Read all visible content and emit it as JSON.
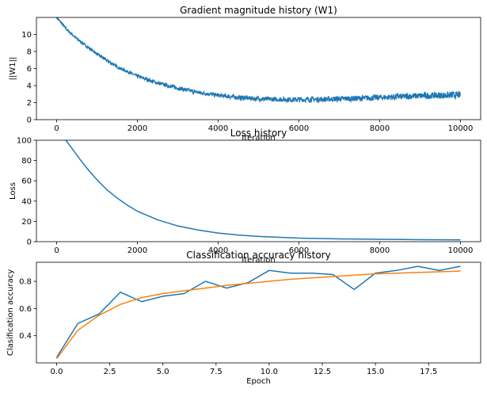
{
  "chart_data": [
    {
      "type": "line",
      "title": "Gradient magnitude history (W1)",
      "xlabel": "Iteration",
      "ylabel": "||W1||",
      "xlim": [
        -500,
        10500
      ],
      "ylim": [
        0,
        12
      ],
      "xticks": [
        0,
        2000,
        4000,
        6000,
        8000,
        10000
      ],
      "yticks": [
        0,
        2,
        4,
        6,
        8,
        10
      ],
      "grid": false,
      "series": [
        {
          "x": [
            0,
            250,
            500,
            1000,
            1500,
            2000,
            2500,
            3000,
            3500,
            4000,
            4500,
            5000,
            5500,
            6000,
            6500,
            7000,
            7500,
            8000,
            8500,
            9000,
            9500,
            10000
          ],
          "values": [
            12.0,
            10.6,
            9.5,
            7.7,
            6.2,
            5.1,
            4.3,
            3.7,
            3.2,
            2.85,
            2.6,
            2.45,
            2.38,
            2.35,
            2.38,
            2.45,
            2.5,
            2.6,
            2.7,
            2.8,
            2.85,
            2.9
          ]
        }
      ]
    },
    {
      "type": "line",
      "title": "Loss history",
      "xlabel": "Iteration",
      "ylabel": "Loss",
      "xlim": [
        -500,
        10500
      ],
      "ylim": [
        0,
        100
      ],
      "xticks": [
        0,
        2000,
        4000,
        6000,
        8000,
        10000
      ],
      "yticks": [
        0,
        20,
        40,
        60,
        80,
        100
      ],
      "grid": false,
      "series": [
        {
          "x": [
            230,
            400,
            600,
            800,
            1000,
            1250,
            1500,
            1750,
            2000,
            2500,
            3000,
            3500,
            4000,
            4500,
            5000,
            6000,
            7000,
            8000,
            9000,
            10000
          ],
          "values": [
            100,
            91,
            80,
            70,
            61,
            51,
            43,
            36,
            30,
            21.5,
            15.5,
            11.5,
            8.5,
            6.5,
            5.2,
            3.5,
            2.7,
            2.3,
            2.0,
            1.8
          ]
        }
      ]
    },
    {
      "type": "line",
      "title": "Classification accuracy history",
      "xlabel": "Epoch",
      "ylabel": "Clasification accuracy",
      "xlim": [
        -0.95,
        19.95
      ],
      "ylim": [
        0.2,
        0.94
      ],
      "xticks": [
        0.0,
        2.5,
        5.0,
        7.5,
        10.0,
        12.5,
        15.0,
        17.5
      ],
      "xticklabels": [
        "0.0",
        "2.5",
        "5.0",
        "7.5",
        "10.0",
        "12.5",
        "15.0",
        "17.5"
      ],
      "yticks": [
        0.4,
        0.6,
        0.8
      ],
      "yticklabels": [
        "0.4",
        "0.6",
        "0.8"
      ],
      "grid": false,
      "series": [
        {
          "color": "#1f77b4",
          "x": [
            0,
            1,
            2,
            3,
            4,
            5,
            6,
            7,
            8,
            9,
            10,
            11,
            12,
            13,
            14,
            15,
            16,
            17,
            18,
            19
          ],
          "values": [
            0.24,
            0.49,
            0.56,
            0.72,
            0.65,
            0.69,
            0.71,
            0.8,
            0.75,
            0.79,
            0.88,
            0.86,
            0.86,
            0.85,
            0.74,
            0.86,
            0.88,
            0.91,
            0.88,
            0.91
          ]
        },
        {
          "color": "#ff7f0e",
          "x": [
            0,
            1,
            2,
            3,
            4,
            5,
            6,
            7,
            8,
            9,
            10,
            11,
            12,
            13,
            14,
            15,
            16,
            17,
            18,
            19
          ],
          "values": [
            0.23,
            0.44,
            0.55,
            0.63,
            0.68,
            0.71,
            0.73,
            0.75,
            0.77,
            0.785,
            0.8,
            0.815,
            0.825,
            0.835,
            0.845,
            0.855,
            0.86,
            0.865,
            0.87,
            0.875
          ]
        }
      ]
    }
  ],
  "colors": {
    "line": "#1f77b4",
    "line2": "#ff7f0e"
  }
}
